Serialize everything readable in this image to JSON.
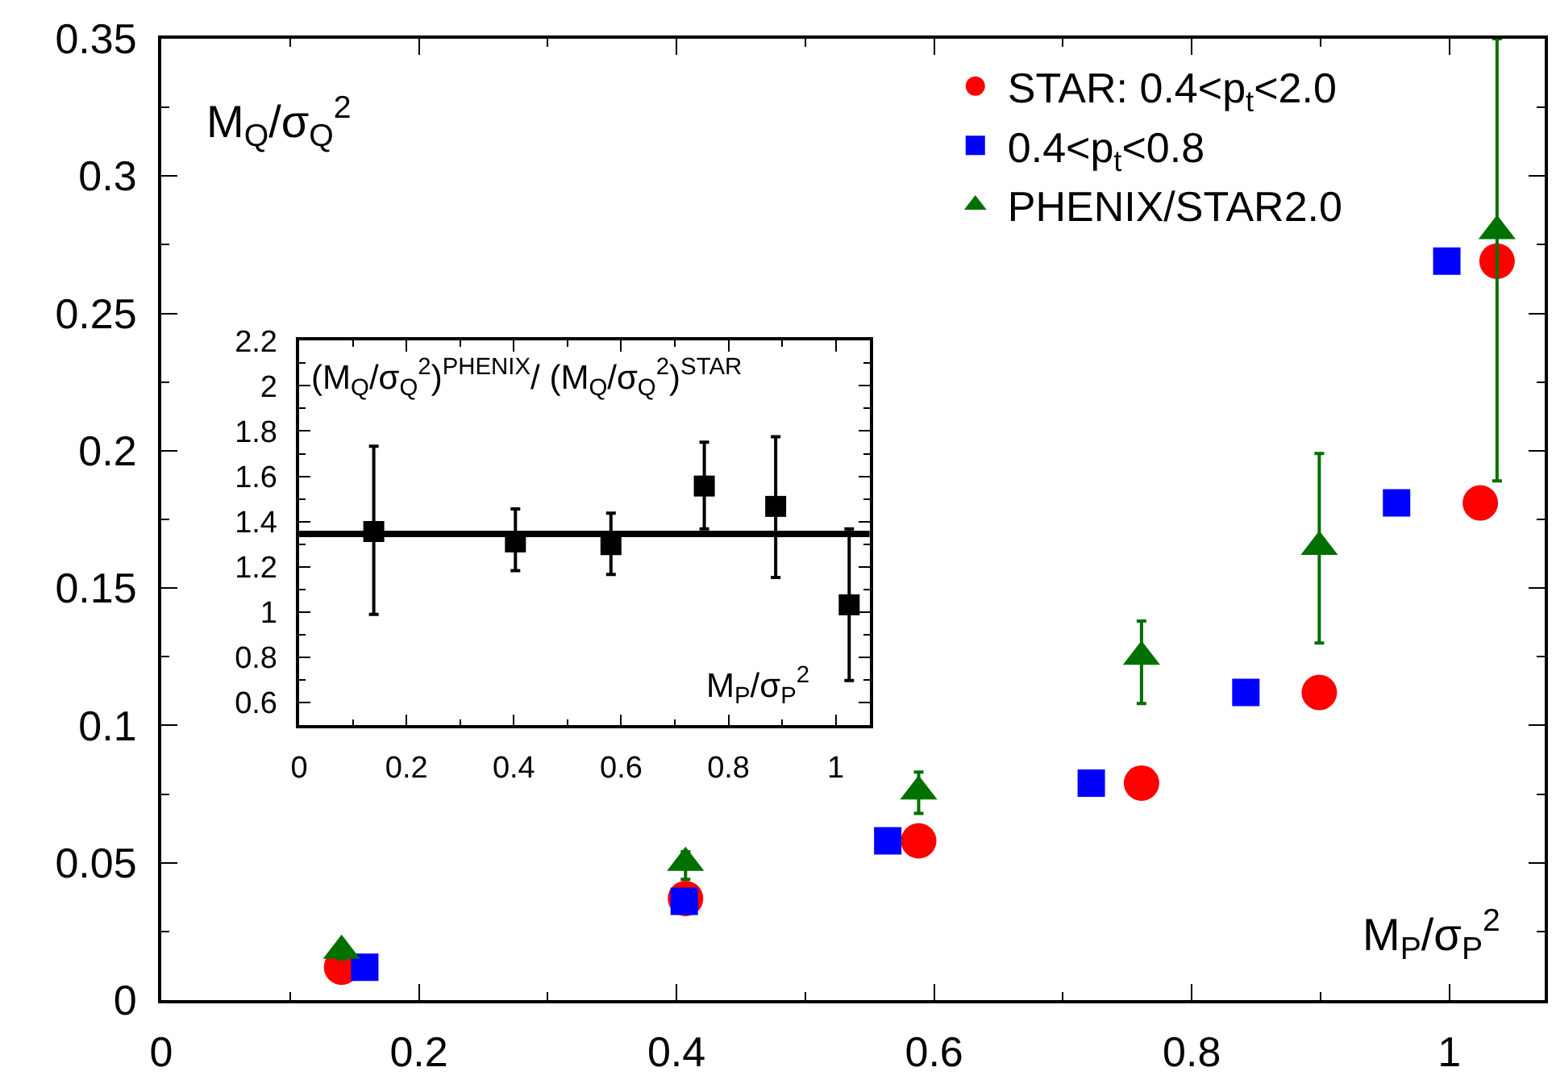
{
  "chart_data": [
    {
      "type": "scatter",
      "xlabel": "M$_{P}$/σ$_{P}$$^{2}$",
      "ylabel": "M$_{Q}$/σ$_{Q}$$^{2}$",
      "xlim": [
        0,
        1.074
      ],
      "xticks": [
        0,
        0.2,
        0.4,
        0.6,
        0.8,
        1
      ],
      "ylim": [
        0,
        0.35
      ],
      "yticks": [
        0,
        0.05,
        0.1,
        0.15,
        0.2,
        0.25,
        0.3,
        0.35
      ],
      "legend": "top right",
      "series": [
        {
          "name": "STAR: 0.4<p$_{t}$<2.0",
          "color": "#ff0000",
          "marker": "circle",
          "x": [
            0.14,
            0.407,
            0.588,
            0.761,
            0.899,
            1.024,
            1.037
          ],
          "values": [
            0.012,
            0.037,
            0.058,
            0.079,
            0.112,
            0.181,
            0.269
          ]
        },
        {
          "name": "0.4<p$_{t}$<0.8",
          "color": "#0000ff",
          "marker": "square",
          "x": [
            0.158,
            0.406,
            0.564,
            0.722,
            0.842,
            0.959,
            0.998
          ],
          "values": [
            0.012,
            0.036,
            0.058,
            0.079,
            0.112,
            0.181,
            0.269
          ]
        },
        {
          "name": "PHENIX/STAR2.0",
          "color": "#007000",
          "marker": "triangle",
          "x": [
            0.14,
            0.407,
            0.588,
            0.761,
            0.899,
            1.037
          ],
          "values": [
            0.018,
            0.05,
            0.076,
            0.125,
            0.165,
            0.28
          ],
          "errors": [
            [
              0.015,
              0.021
            ],
            [
              0.044,
              0.054
            ],
            [
              0.068,
              0.083
            ],
            [
              0.108,
              0.138
            ],
            [
              0.13,
              0.199
            ],
            [
              0.189,
              0.35
            ]
          ]
        }
      ]
    },
    {
      "type": "scatter",
      "xlabel": "M$_{P}$/σ$_{P}$$^{2}$",
      "ylabel": "(M$_{Q}$/σ$_{Q}$$^{2}$)$^{PHENIX}$/ (M$_{Q}$/σ$_{Q}$$^{2}$)$^{STAR}$",
      "xlim": [
        0,
        1.063
      ],
      "xticks": [
        0,
        0.2,
        0.4,
        0.6,
        0.8,
        1
      ],
      "ylim": [
        0.5,
        2.2
      ],
      "yticks": [
        0.6,
        0.8,
        1,
        1.2,
        1.4,
        1.6,
        1.8,
        2,
        2.2
      ],
      "ref_lines": [
        {
          "axis": "y",
          "value": 1.345,
          "color": "#000000"
        }
      ],
      "series": [
        {
          "color": "#000000",
          "marker": "square",
          "x": [
            0.139,
            0.403,
            0.581,
            0.755,
            0.888,
            1.025
          ],
          "values": [
            1.356,
            1.31,
            1.298,
            1.557,
            1.467,
            1.032
          ],
          "errors": [
            [
              0.99,
              1.733
            ],
            [
              1.183,
              1.456
            ],
            [
              1.166,
              1.437
            ],
            [
              1.368,
              1.751
            ],
            [
              1.153,
              1.775
            ],
            [
              0.697,
              1.368
            ]
          ]
        }
      ]
    }
  ]
}
